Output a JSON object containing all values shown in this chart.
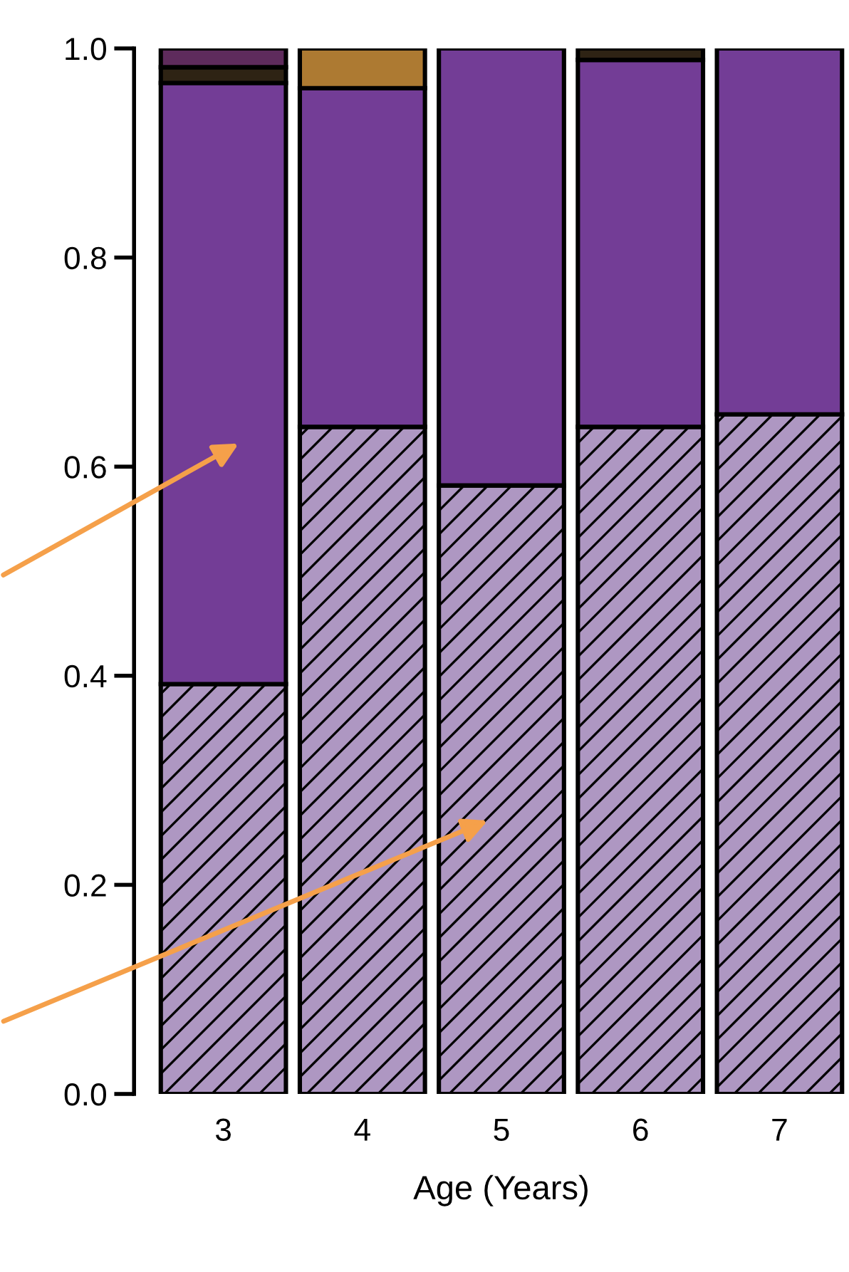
{
  "chart_data": {
    "type": "bar",
    "stacked": true,
    "xlabel": "Age (Years)",
    "categories": [
      "3",
      "4",
      "5",
      "6",
      "7"
    ],
    "series": [
      {
        "color": "#ae97c2",
        "values": [
          0.392,
          0.638,
          0.582,
          0.638,
          0.65
        ]
      },
      {
        "color": "#733d96",
        "values": [
          0.575,
          0.324,
          0.418,
          0.351,
          0.35
        ]
      },
      {
        "color": "#2e2314",
        "values": [
          0.015,
          null,
          null,
          0.011,
          null
        ]
      },
      {
        "color": "#ad7a32",
        "values": [
          null,
          0.038,
          null,
          null,
          null
        ]
      },
      {
        "color": "#5e2b5c",
        "values": [
          0.018,
          null,
          null,
          null,
          null
        ]
      }
    ],
    "ylim": [
      0,
      1
    ],
    "yticks": [
      {
        "value": 0,
        "label": "0.0"
      },
      0.2,
      0.4,
      0.6,
      0.8,
      {
        "value": 1,
        "label": "1.0"
      }
    ],
    "grid": false,
    "legend": false
  }
}
